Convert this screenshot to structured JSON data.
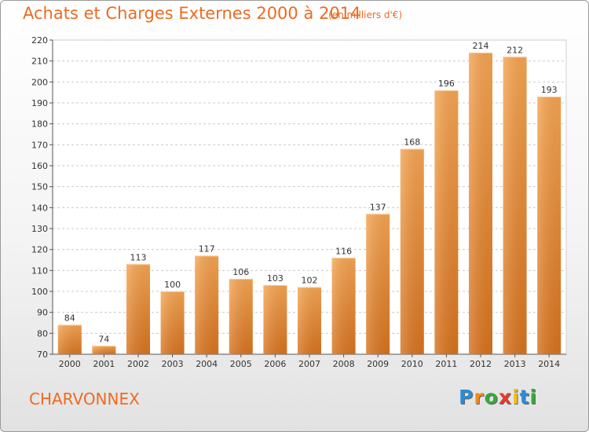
{
  "header": {
    "title": "Achats et Charges Externes 2000 à 2014",
    "unit": "(en milliers d'€)"
  },
  "footer": {
    "commune": "CHARVONNEX",
    "brand": "Proxiti",
    "brand_letters": [
      {
        "ch": "P",
        "color": "#2a8dd6"
      },
      {
        "ch": "r",
        "color": "#f08a1c"
      },
      {
        "ch": "o",
        "color": "#37a939"
      },
      {
        "ch": "x",
        "color": "#e43b2c"
      },
      {
        "ch": "i",
        "color": "#f3c019"
      },
      {
        "ch": "t",
        "color": "#2a8dd6"
      },
      {
        "ch": "i",
        "color": "#37a939"
      }
    ]
  },
  "colors": {
    "bar_light": "#f6a552",
    "bar_dark": "#d8731f",
    "accent": "#ee6a22",
    "grid": "#c9c9c9"
  },
  "chart_data": {
    "type": "bar",
    "title": "Achats et Charges Externes 2000 à 2014",
    "subtitle": "(en milliers d'€)",
    "xlabel": "",
    "ylabel": "",
    "categories": [
      "2000",
      "2001",
      "2002",
      "2003",
      "2004",
      "2005",
      "2006",
      "2007",
      "2008",
      "2009",
      "2010",
      "2011",
      "2012",
      "2013",
      "2014"
    ],
    "values": [
      84,
      74,
      113,
      100,
      117,
      106,
      103,
      102,
      116,
      137,
      168,
      196,
      214,
      212,
      193
    ],
    "ylim": [
      70,
      220
    ],
    "yticks": [
      70,
      80,
      90,
      100,
      110,
      120,
      130,
      140,
      150,
      160,
      170,
      180,
      190,
      200,
      210,
      220
    ],
    "grid": true,
    "data_labels": true
  }
}
